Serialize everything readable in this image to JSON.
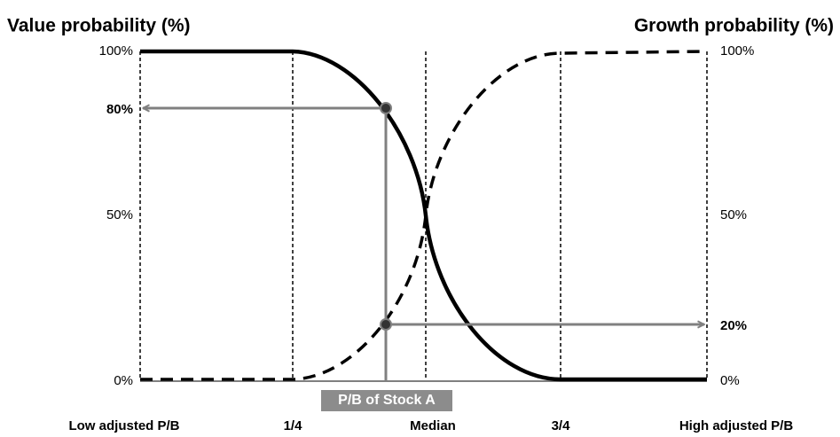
{
  "title_left": "Value probability (%)",
  "title_right": "Growth probability (%)",
  "left_axis": [
    "100%",
    "80%",
    "50%",
    "0%"
  ],
  "right_axis": [
    "100%",
    "50%",
    "20%",
    "0%"
  ],
  "marker_label": "P/B of Stock A",
  "bottom_labels": [
    "Low adjusted P/B",
    "1/4",
    "Median",
    "3/4",
    "High adjusted P/B"
  ]
}
